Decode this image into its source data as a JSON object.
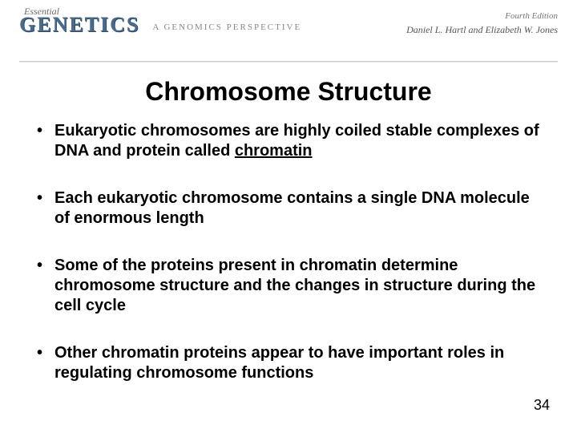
{
  "header": {
    "essential": "Essential",
    "brand": "GENETICS",
    "subtitle": "A GENOMICS PERSPECTIVE",
    "edition": "Fourth Edition",
    "authors": "Daniel L. Hartl and Elizabeth W. Jones"
  },
  "slide": {
    "title": "Chromosome Structure",
    "bullets": [
      {
        "pre": "Eukaryotic chromosomes are highly coiled stable complexes of DNA and protein called ",
        "underlined": "chromatin",
        "post": ""
      },
      {
        "pre": "Each eukaryotic chromosome contains a single DNA molecule of enormous length",
        "underlined": "",
        "post": ""
      },
      {
        "pre": "Some of the proteins present in chromatin determine chromosome structure and the changes in structure during the cell cycle",
        "underlined": "",
        "post": ""
      },
      {
        "pre": "Other chromatin proteins appear to have important roles in regulating chromosome functions",
        "underlined": "",
        "post": ""
      }
    ],
    "page_number": "34"
  },
  "style": {
    "brand_color": "#4a6b8a",
    "rule_color": "#c9c9c9",
    "title_fontsize": 32,
    "bullet_fontsize": 20,
    "background": "#ffffff"
  }
}
